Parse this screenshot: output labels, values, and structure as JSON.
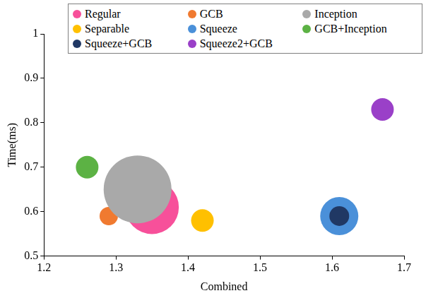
{
  "chart_data": {
    "type": "bubble",
    "x_label": "Combined",
    "y_label": "Time(ms)",
    "xlim": [
      1.2,
      1.7
    ],
    "xticks": [
      1.2,
      1.3,
      1.4,
      1.5,
      1.6,
      1.7
    ],
    "ylim": [
      0.5,
      1
    ],
    "yticks": [
      0.5,
      0.6,
      0.7,
      0.8,
      0.9,
      1
    ],
    "grid": false,
    "legend": "top",
    "series": [
      {
        "name": "Regular",
        "color": "#f7509a",
        "x": [
          1.35
        ],
        "values": [
          0.61
        ],
        "sizes": [
          38
        ]
      },
      {
        "name": "GCB",
        "color": "#f07a30",
        "x": [
          1.29
        ],
        "values": [
          0.59
        ],
        "sizes": [
          13
        ]
      },
      {
        "name": "Inception",
        "color": "#a9a9a9",
        "x": [
          1.33
        ],
        "values": [
          0.65
        ],
        "sizes": [
          48
        ]
      },
      {
        "name": "Separable",
        "color": "#ffc000",
        "x": [
          1.42
        ],
        "values": [
          0.58
        ],
        "sizes": [
          16
        ]
      },
      {
        "name": "Squeeze",
        "color": "#4a90d9",
        "x": [
          1.61
        ],
        "values": [
          0.59
        ],
        "sizes": [
          27
        ]
      },
      {
        "name": "GCB+Inception",
        "color": "#5cb244",
        "x": [
          1.26
        ],
        "values": [
          0.7
        ],
        "sizes": [
          16
        ]
      },
      {
        "name": "Squeeze+GCB",
        "color": "#203864",
        "x": [
          1.61
        ],
        "values": [
          0.59
        ],
        "sizes": [
          14
        ]
      },
      {
        "name": "Squeeze2+GCB",
        "color": "#9a40c8",
        "x": [
          1.67
        ],
        "values": [
          0.83
        ],
        "sizes": [
          16
        ]
      }
    ]
  }
}
